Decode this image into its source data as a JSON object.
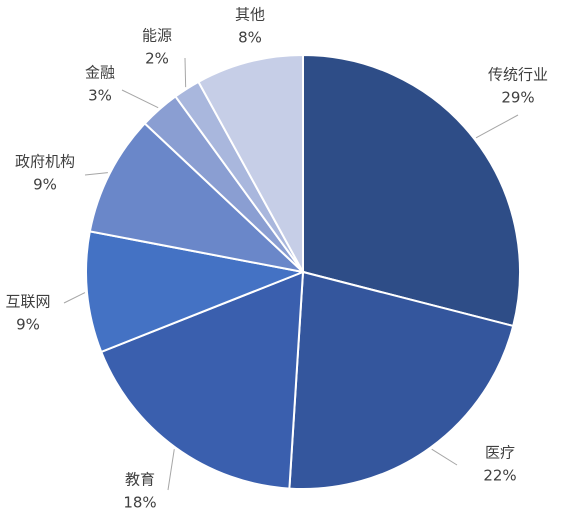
{
  "chart_data": {
    "type": "pie",
    "categories": [
      "传统行业",
      "医疗",
      "教育",
      "互联网",
      "政府机构",
      "金融",
      "能源",
      "其他"
    ],
    "values": [
      29,
      22,
      18,
      9,
      9,
      3,
      2,
      8
    ],
    "value_labels": [
      "29%",
      "22%",
      "18%",
      "9%",
      "9%",
      "3%",
      "2%",
      "8%"
    ],
    "colors": [
      "#2e4d87",
      "#34569d",
      "#3a5fae",
      "#4472c4",
      "#6a87c9",
      "#8a9ed2",
      "#a9b7dd",
      "#c6cee7"
    ]
  }
}
